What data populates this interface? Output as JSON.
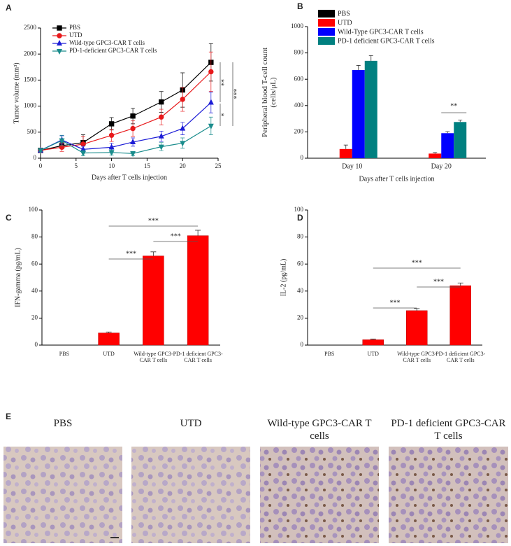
{
  "chart_data": [
    {
      "panel_label": "A",
      "type": "line",
      "xlabel": "Days after T cells injection",
      "ylabel": "Tumor volume (mm³)",
      "x": [
        0,
        3,
        6,
        10,
        13,
        17,
        20,
        24
      ],
      "xlim": [
        0,
        25
      ],
      "xticks": [
        0,
        5,
        10,
        15,
        20,
        25
      ],
      "ylim": [
        0,
        2500
      ],
      "yticks": [
        0,
        500,
        1000,
        1500,
        2000,
        2500
      ],
      "series": [
        {
          "name": "PBS",
          "color": "#000000",
          "marker": "square",
          "values": [
            150,
            240,
            300,
            660,
            810,
            1080,
            1310,
            1840
          ],
          "errors": [
            20,
            60,
            150,
            120,
            150,
            200,
            330,
            360
          ]
        },
        {
          "name": "UTD",
          "color": "#e8191b",
          "marker": "circle",
          "values": [
            150,
            210,
            270,
            440,
            570,
            790,
            1130,
            1660
          ],
          "errors": [
            20,
            80,
            150,
            120,
            150,
            150,
            230,
            380
          ]
        },
        {
          "name": "Wild-type GPC3-CAR T cells",
          "color": "#1c1cd6",
          "marker": "triangle",
          "values": [
            150,
            350,
            170,
            210,
            310,
            420,
            570,
            1070
          ],
          "errors": [
            20,
            80,
            60,
            80,
            80,
            100,
            120,
            200
          ]
        },
        {
          "name": "PD-1-deficient GPC3-CAR T cells",
          "color": "#1a8c8c",
          "marker": "triangle-down",
          "values": [
            150,
            340,
            100,
            110,
            90,
            220,
            290,
            620
          ],
          "errors": [
            20,
            100,
            50,
            50,
            40,
            80,
            100,
            170
          ]
        }
      ],
      "annotations": [
        "**",
        "*",
        "***"
      ]
    },
    {
      "panel_label": "B",
      "type": "bar",
      "xlabel": "Days after T cells injection",
      "ylabel": "Peripheral blood T-cell count (cells/μL)",
      "categories": [
        "Day 10",
        "Day 20"
      ],
      "ylim": [
        0,
        1000
      ],
      "yticks": [
        0,
        200,
        400,
        600,
        800,
        1000
      ],
      "series": [
        {
          "name": "PBS",
          "color": "#000000",
          "values": [
            null,
            null
          ],
          "errors": [
            null,
            null
          ]
        },
        {
          "name": "UTD",
          "color": "#ff0000",
          "values": [
            70,
            35
          ],
          "errors": [
            30,
            8
          ]
        },
        {
          "name": "Wild-Type GPC3-CAR T cells",
          "color": "#0000ff",
          "values": [
            670,
            190
          ],
          "errors": [
            35,
            12
          ]
        },
        {
          "name": "PD-1 deficient GPC3-CAR T cells",
          "color": "#008080",
          "values": [
            740,
            275
          ],
          "errors": [
            40,
            15
          ]
        }
      ],
      "annotations": [
        "**"
      ]
    },
    {
      "panel_label": "C",
      "type": "bar",
      "ylabel": "IFN-gamma (pg/mL)",
      "color": "#ff0000",
      "categories": [
        "PBS",
        "UTD",
        "Wild-type GPC3-CAR T cells",
        "PD-1 deficient GPC3-CAR T cells"
      ],
      "values": [
        null,
        9,
        66,
        81
      ],
      "errors": [
        null,
        0.7,
        3,
        4
      ],
      "ylim": [
        0,
        100
      ],
      "yticks": [
        0,
        20,
        40,
        60,
        80,
        100
      ],
      "annotations": [
        "***",
        "***",
        "***"
      ]
    },
    {
      "panel_label": "D",
      "type": "bar",
      "ylabel": "IL-2 (pg/mL)",
      "color": "#ff0000",
      "categories": [
        "PBS",
        "UTD",
        "Wild-type GPC3-CAR T cells",
        "PD-1 deficient GPC3-CAR T cells"
      ],
      "values": [
        null,
        4,
        25.5,
        44
      ],
      "errors": [
        null,
        0.5,
        1.5,
        2
      ],
      "ylim": [
        0,
        100
      ],
      "yticks": [
        0,
        20,
        40,
        60,
        80,
        100
      ],
      "annotations": [
        "***",
        "***",
        "***"
      ]
    }
  ],
  "images": {
    "panel_label": "E",
    "labels": [
      "PBS",
      "UTD",
      "Wild-type GPC3-CAR T cells",
      "PD-1 deficient GPC3-CAR T cells"
    ]
  }
}
